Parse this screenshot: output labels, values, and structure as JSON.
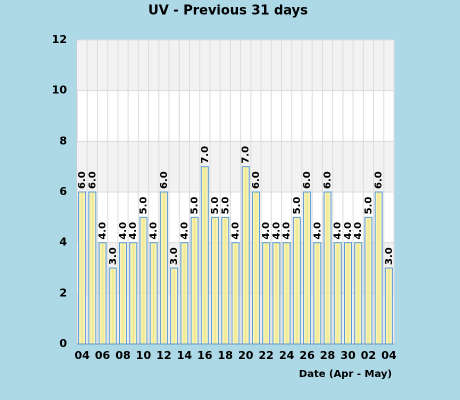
{
  "chart_data": {
    "type": "bar",
    "title": "UV - Previous 31 days",
    "x_label": "Date (Apr - May)",
    "categories": [
      "04",
      null,
      "06",
      null,
      "08",
      null,
      "10",
      null,
      "12",
      null,
      "14",
      null,
      "16",
      null,
      "18",
      null,
      "20",
      null,
      "22",
      null,
      "24",
      null,
      "26",
      null,
      "28",
      null,
      "30",
      null,
      "02",
      null,
      "04"
    ],
    "values": [
      6,
      6,
      4,
      3,
      4,
      4,
      5,
      4,
      6,
      3,
      4,
      5,
      7,
      5,
      5,
      4,
      7,
      6,
      4,
      4,
      4,
      5,
      6,
      4,
      6,
      4,
      4,
      4,
      5,
      6,
      3
    ],
    "value_labels": [
      "6.0",
      "6.0",
      "4.0",
      "3.0",
      "4.0",
      "4.0",
      "5.0",
      "4.0",
      "6.0",
      "3.0",
      "4.0",
      "5.0",
      "7.0",
      "5.0",
      "5.0",
      "4.0",
      "7.0",
      "6.0",
      "4.0",
      "4.0",
      "4.0",
      "5.0",
      "6.0",
      "4.0",
      "6.0",
      "4.0",
      "4.0",
      "4.0",
      "5.0",
      "6.0",
      "3.0"
    ],
    "color": "#f5f0a0",
    "ylim": [
      0,
      12
    ],
    "yticks": [
      0,
      2,
      4,
      6,
      8,
      10,
      12
    ],
    "grid": true
  }
}
